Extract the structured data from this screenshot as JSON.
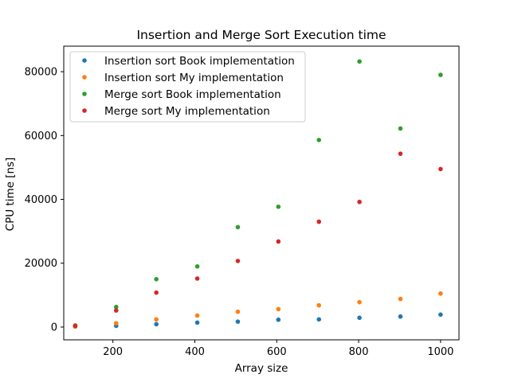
{
  "chart_data": {
    "type": "scatter",
    "title": "Insertion and Merge Sort Execution time",
    "xlabel": "Array size",
    "ylabel": "CPU time [ns]",
    "xlim": [
      80,
      1045
    ],
    "ylim": [
      -4000,
      88000
    ],
    "xticks": [
      200,
      400,
      600,
      800,
      1000
    ],
    "yticks": [
      0,
      20000,
      40000,
      60000,
      80000
    ],
    "grid": false,
    "legend_position": "top-left",
    "x": [
      108,
      208,
      306,
      406,
      505,
      604,
      703,
      802,
      902,
      1000
    ],
    "series": [
      {
        "name": "Insertion sort Book implementation",
        "color": "#1f77b4",
        "values": [
          150,
          400,
          900,
          1400,
          1700,
          2300,
          2400,
          2900,
          3300,
          3900
        ]
      },
      {
        "name": "Insertion sort My implementation",
        "color": "#ff7f0e",
        "values": [
          200,
          1200,
          2400,
          3600,
          4800,
          5600,
          6800,
          7800,
          8800,
          10500
        ]
      },
      {
        "name": "Merge sort Book implementation",
        "color": "#2ca02c",
        "values": [
          500,
          6300,
          15000,
          19000,
          31300,
          37700,
          58600,
          83200,
          62200,
          79000
        ]
      },
      {
        "name": "Merge sort My implementation",
        "color": "#d62728",
        "values": [
          400,
          5200,
          10800,
          15200,
          20700,
          26800,
          33000,
          39200,
          54300,
          49500
        ]
      }
    ]
  }
}
